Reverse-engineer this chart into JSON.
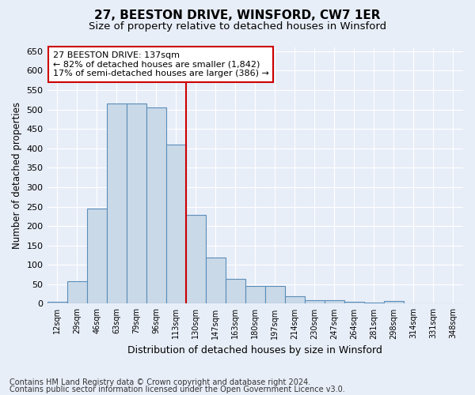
{
  "title": "27, BEESTON DRIVE, WINSFORD, CW7 1ER",
  "subtitle": "Size of property relative to detached houses in Winsford",
  "xlabel": "Distribution of detached houses by size in Winsford",
  "ylabel": "Number of detached properties",
  "categories": [
    "12sqm",
    "29sqm",
    "46sqm",
    "63sqm",
    "79sqm",
    "96sqm",
    "113sqm",
    "130sqm",
    "147sqm",
    "163sqm",
    "180sqm",
    "197sqm",
    "214sqm",
    "230sqm",
    "247sqm",
    "264sqm",
    "281sqm",
    "298sqm",
    "314sqm",
    "331sqm",
    "348sqm"
  ],
  "bar_values": [
    5,
    58,
    245,
    515,
    515,
    505,
    410,
    228,
    118,
    63,
    46,
    46,
    20,
    10,
    8,
    5,
    2,
    7,
    0,
    0,
    0
  ],
  "bar_color": "#c9d9e8",
  "bar_edge_color": "#5b8db8",
  "vline_x": 7.0,
  "vline_color": "#cc0000",
  "annotation_text": "27 BEESTON DRIVE: 137sqm\n← 82% of detached houses are smaller (1,842)\n17% of semi-detached houses are larger (386) →",
  "annotation_box_color": "white",
  "annotation_box_edge_color": "#cc0000",
  "ylim": [
    0,
    660
  ],
  "yticks": [
    0,
    50,
    100,
    150,
    200,
    250,
    300,
    350,
    400,
    450,
    500,
    550,
    600,
    650
  ],
  "background_color": "#e8eef8",
  "plot_bg_color": "#e8eef8",
  "footer_line1": "Contains HM Land Registry data © Crown copyright and database right 2024.",
  "footer_line2": "Contains public sector information licensed under the Open Government Licence v3.0.",
  "title_fontsize": 11,
  "subtitle_fontsize": 9.5,
  "xlabel_fontsize": 9,
  "ylabel_fontsize": 8.5,
  "footer_fontsize": 7
}
